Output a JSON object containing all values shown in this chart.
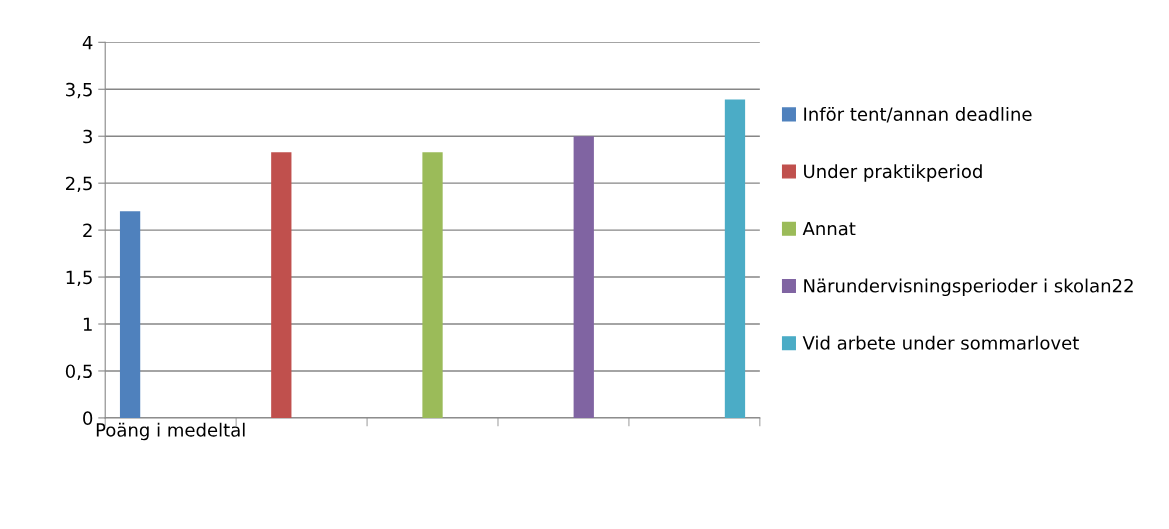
{
  "chart_data": {
    "type": "bar",
    "categories": [
      "Poäng i medeltal",
      null,
      null,
      null,
      null
    ],
    "series": [
      {
        "name": "Inför tent/annan deadline",
        "color": "#4f81bd",
        "values": [
          2.2,
          null,
          null,
          null,
          null
        ]
      },
      {
        "name": "Under praktikperiod",
        "color": "#c0504d",
        "values": [
          null,
          2.83,
          null,
          null,
          null
        ]
      },
      {
        "name": "Annat",
        "color": "#9bbb59",
        "values": [
          null,
          null,
          2.83,
          null,
          null
        ]
      },
      {
        "name": "Närundervisningsperioder i skolan22",
        "color": "#8064a2",
        "values": [
          null,
          null,
          null,
          3.0,
          null
        ]
      },
      {
        "name": "Vid arbete under sommarlovet",
        "color": "#4bacc6",
        "values": [
          null,
          null,
          null,
          null,
          3.39
        ]
      }
    ],
    "ylim": [
      0,
      4
    ],
    "yticks": [
      0,
      {
        "value": 0.5,
        "label": "0,5"
      },
      1,
      {
        "value": 1.5,
        "label": "1,5"
      },
      2,
      {
        "value": 2.5,
        "label": "2,5"
      },
      3,
      {
        "value": 3.5,
        "label": "3,5"
      },
      4
    ],
    "grid": "y",
    "legend": "right"
  }
}
